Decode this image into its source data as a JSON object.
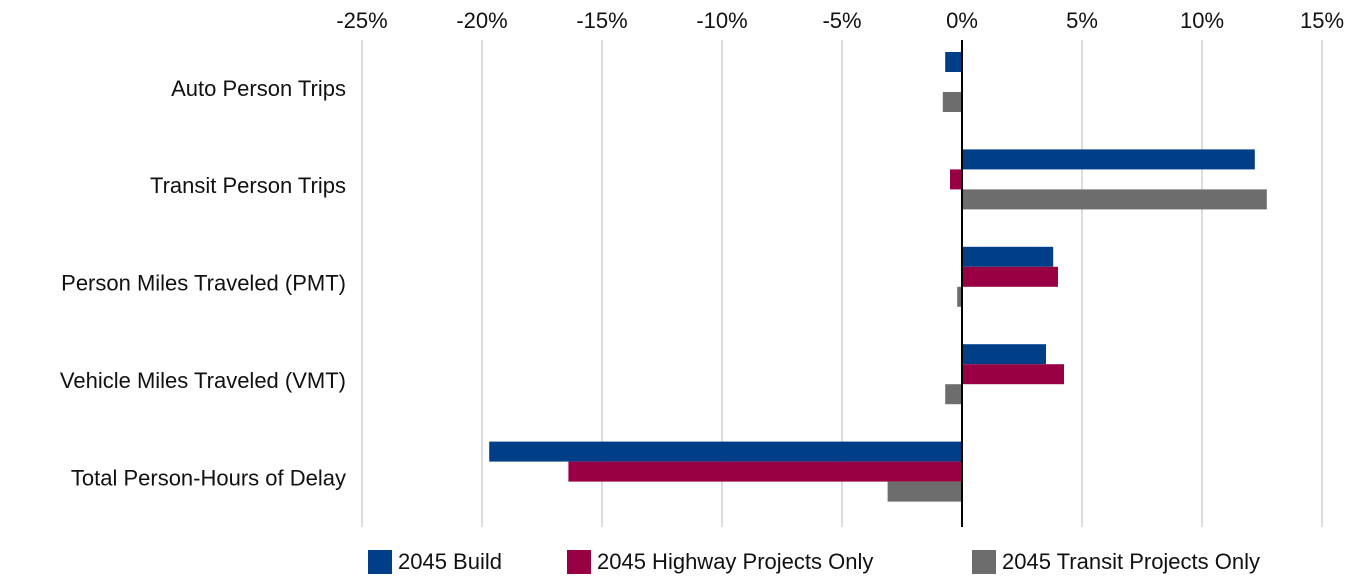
{
  "chart_data": {
    "type": "hbar",
    "categories": [
      "Auto Person Trips",
      "Transit Person Trips",
      "Person Miles Traveled (PMT)",
      "Vehicle Miles Traveled (VMT)",
      "Total Person-Hours of Delay"
    ],
    "series": [
      {
        "name": "2045 Build",
        "color": "#003f87",
        "values": [
          -0.7,
          12.2,
          3.8,
          3.5,
          -19.7
        ]
      },
      {
        "name": "2045 Highway Projects Only",
        "color": "#990044",
        "values": [
          0,
          -0.5,
          4.0,
          4.25,
          -16.4
        ]
      },
      {
        "name": "2045 Transit Projects Only",
        "color": "#6d6d6d",
        "values": [
          -0.8,
          12.7,
          -0.2,
          -0.7,
          -3.1
        ]
      }
    ],
    "xlim": [
      -25,
      15
    ],
    "xticks": [
      {
        "value": -25,
        "label": "-25%"
      },
      {
        "value": -20,
        "label": "-20%"
      },
      {
        "value": -15,
        "label": "-15%"
      },
      {
        "value": -10,
        "label": "-10%"
      },
      {
        "value": -5,
        "label": "-5%"
      },
      {
        "value": 0,
        "label": "0%"
      },
      {
        "value": 5,
        "label": "5%"
      },
      {
        "value": 10,
        "label": "10%"
      },
      {
        "value": 15,
        "label": "15%"
      }
    ],
    "grid": true,
    "legend": "bottom"
  }
}
